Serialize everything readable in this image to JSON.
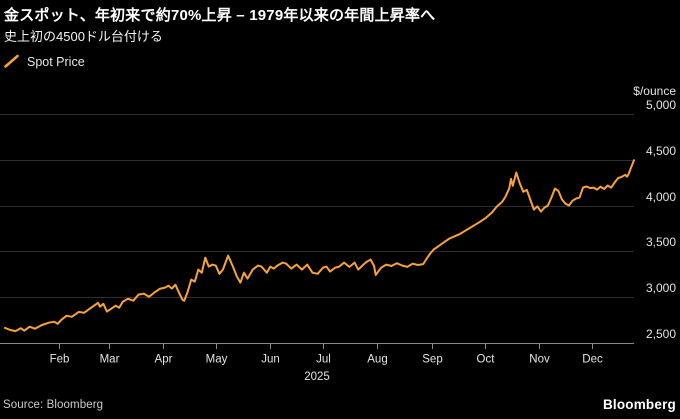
{
  "header": {
    "title": "金スポット、年初来で約70%上昇 – 1979年以来の年間上昇率へ",
    "subtitle": "史上初の4500ドル台付ける"
  },
  "legend": {
    "label": "Spot Price",
    "marker": "orange-diagonal-line"
  },
  "footer": {
    "source": "Source: Bloomberg",
    "brand": "Bloomberg"
  },
  "colors": {
    "background": "#000000",
    "line": "#F7A338",
    "grid": "#2e2e2e",
    "axis": "#8a8a8a",
    "tick_text": "#e4e4e4",
    "title_text": "#ffffff"
  },
  "chart_data": {
    "type": "line",
    "title": "金スポット、年初来で約70%上昇 – 1979年以来の年間上昇率へ",
    "subtitle": "史上初の4500ドル台付ける",
    "unit": "$/ounce",
    "xlabel": "",
    "ylabel": "$/ounce",
    "ylim": [
      2500,
      5000
    ],
    "yticks": [
      2500,
      3000,
      3500,
      4000,
      4500,
      5000
    ],
    "ytick_labels": [
      "2,500",
      "3,000",
      "3,500",
      "4,000",
      "4,500",
      "5,000"
    ],
    "grid": "horizontal",
    "legend_position": "top-left",
    "x_axis_year": "2025",
    "xticks": [
      {
        "label": "Feb",
        "day": 31
      },
      {
        "label": "Mar",
        "day": 59
      },
      {
        "label": "Apr",
        "day": 90
      },
      {
        "label": "May",
        "day": 120
      },
      {
        "label": "Jun",
        "day": 151
      },
      {
        "label": "Jul",
        "day": 181
      },
      {
        "label": "Aug",
        "day": 212
      },
      {
        "label": "Sep",
        "day": 243
      },
      {
        "label": "Oct",
        "day": 273
      },
      {
        "label": "Nov",
        "day": 304
      },
      {
        "label": "Dec",
        "day": 334
      }
    ],
    "series": [
      {
        "name": "Spot Price",
        "color": "#F7A338",
        "points": [
          [
            0,
            2665
          ],
          [
            3,
            2642
          ],
          [
            6,
            2630
          ],
          [
            9,
            2662
          ],
          [
            11,
            2634
          ],
          [
            14,
            2678
          ],
          [
            17,
            2656
          ],
          [
            21,
            2696
          ],
          [
            25,
            2722
          ],
          [
            28,
            2733
          ],
          [
            30,
            2710
          ],
          [
            32,
            2752
          ],
          [
            35,
            2797
          ],
          [
            38,
            2786
          ],
          [
            42,
            2840
          ],
          [
            45,
            2830
          ],
          [
            49,
            2885
          ],
          [
            53,
            2939
          ],
          [
            54,
            2896
          ],
          [
            56,
            2928
          ],
          [
            58,
            2843
          ],
          [
            61,
            2881
          ],
          [
            63,
            2907
          ],
          [
            65,
            2885
          ],
          [
            67,
            2951
          ],
          [
            70,
            2984
          ],
          [
            73,
            2962
          ],
          [
            76,
            3028
          ],
          [
            79,
            3039
          ],
          [
            82,
            3006
          ],
          [
            85,
            3050
          ],
          [
            88,
            3091
          ],
          [
            91,
            3105
          ],
          [
            93,
            3126
          ],
          [
            95,
            3094
          ],
          [
            97,
            3137
          ],
          [
            99,
            3051
          ],
          [
            101,
            2972
          ],
          [
            102,
            2961
          ],
          [
            104,
            3061
          ],
          [
            106,
            3192
          ],
          [
            108,
            3170
          ],
          [
            110,
            3301
          ],
          [
            112,
            3268
          ],
          [
            114,
            3432
          ],
          [
            116,
            3334
          ],
          [
            118,
            3356
          ],
          [
            120,
            3345
          ],
          [
            122,
            3256
          ],
          [
            124,
            3301
          ],
          [
            127,
            3454
          ],
          [
            130,
            3323
          ],
          [
            132,
            3225
          ],
          [
            134,
            3159
          ],
          [
            136,
            3268
          ],
          [
            138,
            3203
          ],
          [
            141,
            3301
          ],
          [
            144,
            3345
          ],
          [
            146,
            3334
          ],
          [
            149,
            3268
          ],
          [
            151,
            3334
          ],
          [
            153,
            3312
          ],
          [
            155,
            3345
          ],
          [
            158,
            3378
          ],
          [
            160,
            3367
          ],
          [
            163,
            3312
          ],
          [
            166,
            3356
          ],
          [
            169,
            3301
          ],
          [
            172,
            3356
          ],
          [
            175,
            3268
          ],
          [
            178,
            3256
          ],
          [
            181,
            3323
          ],
          [
            183,
            3334
          ],
          [
            185,
            3279
          ],
          [
            188,
            3323
          ],
          [
            190,
            3331
          ],
          [
            193,
            3378
          ],
          [
            196,
            3331
          ],
          [
            199,
            3378
          ],
          [
            201,
            3301
          ],
          [
            204,
            3356
          ],
          [
            206,
            3389
          ],
          [
            208,
            3411
          ],
          [
            210,
            3344
          ],
          [
            211,
            3242
          ],
          [
            214,
            3321
          ],
          [
            217,
            3356
          ],
          [
            220,
            3341
          ],
          [
            223,
            3371
          ],
          [
            226,
            3346
          ],
          [
            229,
            3331
          ],
          [
            232,
            3366
          ],
          [
            235,
            3351
          ],
          [
            238,
            3361
          ],
          [
            240,
            3421
          ],
          [
            242,
            3477
          ],
          [
            244,
            3521
          ],
          [
            247,
            3561
          ],
          [
            250,
            3601
          ],
          [
            253,
            3641
          ],
          [
            256,
            3666
          ],
          [
            259,
            3691
          ],
          [
            262,
            3726
          ],
          [
            265,
            3761
          ],
          [
            268,
            3796
          ],
          [
            271,
            3831
          ],
          [
            274,
            3871
          ],
          [
            277,
            3921
          ],
          [
            280,
            3991
          ],
          [
            283,
            4041
          ],
          [
            285,
            4101
          ],
          [
            287,
            4191
          ],
          [
            288,
            4291
          ],
          [
            289,
            4216
          ],
          [
            291,
            4361
          ],
          [
            293,
            4241
          ],
          [
            295,
            4151
          ],
          [
            297,
            4171
          ],
          [
            299,
            4065
          ],
          [
            301,
            3956
          ],
          [
            303,
            3991
          ],
          [
            305,
            3934
          ],
          [
            307,
            3978
          ],
          [
            309,
            4001
          ],
          [
            311,
            4087
          ],
          [
            313,
            4186
          ],
          [
            315,
            4161
          ],
          [
            317,
            4065
          ],
          [
            319,
            4021
          ],
          [
            321,
            4001
          ],
          [
            323,
            4054
          ],
          [
            325,
            4076
          ],
          [
            327,
            4087
          ],
          [
            329,
            4197
          ],
          [
            331,
            4208
          ],
          [
            333,
            4191
          ],
          [
            335,
            4197
          ],
          [
            337,
            4175
          ],
          [
            339,
            4206
          ],
          [
            341,
            4181
          ],
          [
            343,
            4219
          ],
          [
            345,
            4196
          ],
          [
            347,
            4253
          ],
          [
            349,
            4301
          ],
          [
            351,
            4313
          ],
          [
            353,
            4336
          ],
          [
            354,
            4316
          ],
          [
            355,
            4346
          ],
          [
            356,
            4401
          ],
          [
            357,
            4446
          ],
          [
            358,
            4496
          ]
        ]
      }
    ]
  }
}
